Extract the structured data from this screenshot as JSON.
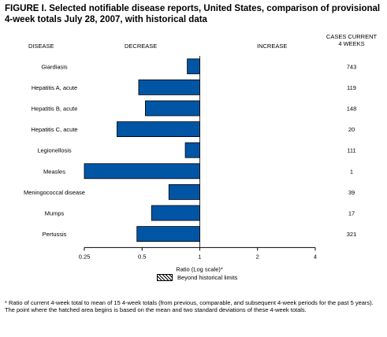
{
  "figure": {
    "title": "FIGURE I. Selected notifiable disease reports, United States, comparison of provisional 4-week totals July 28, 2007, with historical data",
    "col_disease": "DISEASE",
    "col_decrease": "DECREASE",
    "col_increase": "INCREASE",
    "col_cases_line1": "CASES CURRENT",
    "col_cases_line2": "4 WEEKS",
    "legend_label": "Beyond historical limits",
    "footnote": "* Ratio of current 4-week total to mean of 15 4-week totals (from previous, comparable, and subsequent 4-week periods for the past 5 years). The point where the hatched area begins is based on the mean and two standard deviations of these 4-week totals."
  },
  "chart_data": {
    "type": "bar",
    "orientation": "horizontal",
    "xscale": "log2",
    "xlabel": "Ratio (Log scale)*",
    "xlim": [
      0.25,
      4
    ],
    "xticks": [
      0.25,
      0.5,
      1,
      2,
      4
    ],
    "xtick_labels": [
      "0.25",
      "0.5",
      "1",
      "2",
      "4"
    ],
    "baseline": 1,
    "bar_color": "#0055a5",
    "categories": [
      "Giardiasis",
      "Hepatitis A, acute",
      "Hepatitis B, acute",
      "Hepatitis C, acute",
      "Legionellosis",
      "Measles",
      "Meningococcal disease",
      "Mumps",
      "Pertussis"
    ],
    "values": [
      0.86,
      0.48,
      0.52,
      0.37,
      0.84,
      0.25,
      0.69,
      0.56,
      0.47
    ],
    "cases": [
      "743",
      "119",
      "148",
      "20",
      "111",
      "1",
      "39",
      "17",
      "321"
    ]
  }
}
